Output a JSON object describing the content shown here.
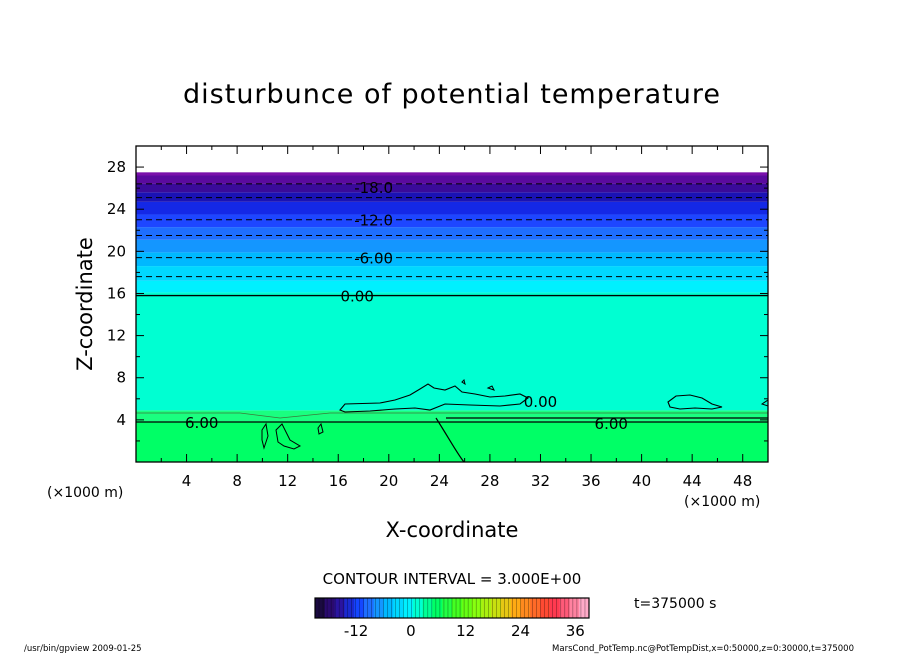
{
  "chart_data": {
    "type": "contour",
    "title": "disturbunce of potential temperature",
    "xlabel": "X-coordinate",
    "ylabel": "Z-coordinate",
    "x_unit_left": "(×1000 m)",
    "x_unit_right": "(×1000 m)",
    "xlim": [
      0,
      50
    ],
    "ylim": [
      0,
      30
    ],
    "x_ticks": [
      4,
      8,
      12,
      16,
      20,
      24,
      28,
      32,
      36,
      40,
      44,
      48
    ],
    "y_ticks": [
      4,
      8,
      12,
      16,
      20,
      24,
      28
    ],
    "contour_interval_text": "CONTOUR INTERVAL = 3.000E+00",
    "time_text": "t=375000 s",
    "contour_labels": [
      {
        "text": "-18.0",
        "x": 18.8,
        "z": 26.1
      },
      {
        "text": "-12.0",
        "x": 18.8,
        "z": 23.0
      },
      {
        "text": "-6.00",
        "x": 18.8,
        "z": 19.4
      },
      {
        "text": "0.00",
        "x": 17.5,
        "z": 15.8
      },
      {
        "text": "0.00",
        "x": 32.0,
        "z": 5.8
      },
      {
        "text": "6.00",
        "x": 5.2,
        "z": 3.8
      },
      {
        "text": "6.00",
        "x": 37.6,
        "z": 3.7
      }
    ],
    "bands": [
      {
        "z0": 0.0,
        "z1": 3.8,
        "color": "#00ff66"
      },
      {
        "z0": 3.8,
        "z1": 4.9,
        "color": "#1aff80"
      },
      {
        "z0": 4.9,
        "z1": 16.1,
        "color": "#00ffd2"
      },
      {
        "z0": 16.1,
        "z1": 17.2,
        "color": "#00f0ff"
      },
      {
        "z0": 17.2,
        "z1": 18.6,
        "color": "#00d8ff"
      },
      {
        "z0": 18.6,
        "z1": 19.9,
        "color": "#00b8ff"
      },
      {
        "z0": 19.9,
        "z1": 21.1,
        "color": "#1496ff"
      },
      {
        "z0": 21.1,
        "z1": 22.3,
        "color": "#1e6eff"
      },
      {
        "z0": 22.3,
        "z1": 23.5,
        "color": "#1e46ff"
      },
      {
        "z0": 23.5,
        "z1": 24.7,
        "color": "#1428e6"
      },
      {
        "z0": 24.7,
        "z1": 25.6,
        "color": "#1a12b4"
      },
      {
        "z0": 25.6,
        "z1": 26.4,
        "color": "#3a0a9a"
      },
      {
        "z0": 26.4,
        "z1": 27.2,
        "color": "#5a0a9e"
      },
      {
        "z0": 27.2,
        "z1": 27.5,
        "color": "#7a10ab"
      }
    ],
    "contour_lines": [
      {
        "z": 26.4,
        "dash": true
      },
      {
        "z": 25.1,
        "dash": true
      },
      {
        "z": 23.0,
        "dash": true
      },
      {
        "z": 21.5,
        "dash": true
      },
      {
        "z": 19.4,
        "dash": true
      },
      {
        "z": 17.6,
        "dash": true
      },
      {
        "z": 15.8,
        "dash": false
      },
      {
        "z": 3.8,
        "dash": false
      }
    ],
    "colorbar": {
      "ticks": [
        -12,
        0,
        12,
        24,
        36
      ],
      "min": -21,
      "max": 39,
      "colors": [
        "#1a0a40",
        "#2a0a70",
        "#2a14a0",
        "#1a2ad0",
        "#1446ff",
        "#1e6eff",
        "#1496ff",
        "#00b8ff",
        "#00d8ff",
        "#00f0ff",
        "#00ffd2",
        "#00ff96",
        "#00ff66",
        "#22ff44",
        "#44ff22",
        "#66ff14",
        "#88ff10",
        "#aaf010",
        "#c8e010",
        "#e6c814",
        "#ffaa14",
        "#ff8a1e",
        "#ff6a28",
        "#ff4a32",
        "#ff3a50",
        "#ff5a78",
        "#ff82a0",
        "#ffaac8"
      ]
    }
  },
  "footer": {
    "left": "/usr/bin/gpview   2009-01-25",
    "right": "MarsCond_PotTemp.nc@PotTempDist,x=0:50000,z=0:30000,t=375000"
  }
}
